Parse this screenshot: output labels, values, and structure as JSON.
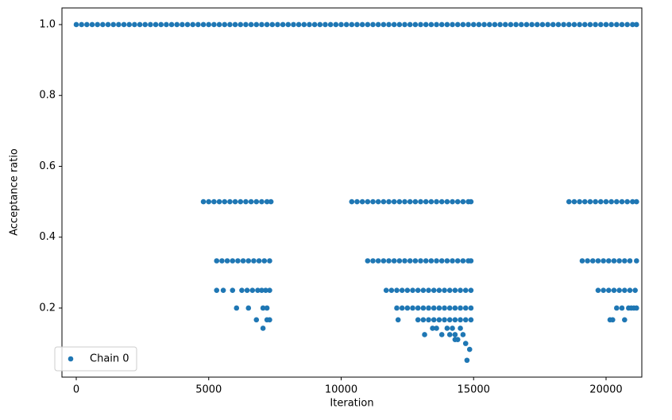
{
  "chart_data": {
    "type": "scatter",
    "xlabel": "Iteration",
    "ylabel": "Acceptance ratio",
    "xlim": [
      -540,
      21350
    ],
    "ylim": [
      0.005,
      1.047
    ],
    "xticks": [
      0,
      5000,
      10000,
      15000,
      20000
    ],
    "yticks": [
      0.2,
      0.4,
      0.6,
      0.8,
      {
        "value": 1,
        "label": "1.0"
      }
    ],
    "grid": false,
    "legend": "lower left",
    "series": [
      {
        "name": "Chain 0",
        "color": "#1f77b4",
        "x": [
          0,
          200,
          400,
          600,
          800,
          1000,
          1200,
          1400,
          1600,
          1800,
          2000,
          2200,
          2400,
          2600,
          2800,
          3000,
          3200,
          3400,
          3600,
          3800,
          4000,
          4200,
          4400,
          4600,
          4800,
          5000,
          5200,
          5400,
          5600,
          5800,
          6000,
          6200,
          6400,
          6600,
          6800,
          7000,
          7200,
          7400,
          7600,
          7800,
          8000,
          8200,
          8400,
          8600,
          8800,
          9000,
          9200,
          9400,
          9600,
          9800,
          10000,
          10200,
          10400,
          10600,
          10800,
          11000,
          11200,
          11400,
          11600,
          11800,
          12000,
          12200,
          12400,
          12600,
          12800,
          13000,
          13200,
          13400,
          13600,
          13800,
          14000,
          14200,
          14400,
          14600,
          14800,
          15000,
          15200,
          15400,
          15600,
          15800,
          16000,
          16200,
          16400,
          16600,
          16800,
          17000,
          17200,
          17400,
          17600,
          17800,
          18000,
          18200,
          18400,
          18600,
          18800,
          19000,
          19200,
          19400,
          19600,
          19800,
          20000,
          20200,
          20400,
          20600,
          20800,
          21000,
          21150,
          4800,
          5000,
          5200,
          5400,
          5600,
          5800,
          6000,
          6200,
          6400,
          6600,
          6800,
          7000,
          7200,
          7350,
          5300,
          5500,
          5700,
          5900,
          6100,
          6300,
          6500,
          6700,
          6900,
          7100,
          7300,
          5300,
          5550,
          5900,
          6250,
          6450,
          6650,
          6850,
          7000,
          7150,
          7300,
          6050,
          6500,
          7050,
          7200,
          6800,
          7200,
          7300,
          7050,
          10400,
          10600,
          10800,
          11000,
          11200,
          11400,
          11600,
          11800,
          12000,
          12200,
          12400,
          12600,
          12800,
          13000,
          13200,
          13400,
          13600,
          13800,
          14000,
          14200,
          14400,
          14600,
          14800,
          14900,
          11000,
          11200,
          11400,
          11600,
          11800,
          12000,
          12200,
          12400,
          12600,
          12800,
          13000,
          13200,
          13400,
          13600,
          13800,
          14000,
          14200,
          14400,
          14600,
          14800,
          14900,
          11700,
          11900,
          12100,
          12300,
          12500,
          12700,
          12900,
          13100,
          13300,
          13500,
          13700,
          13900,
          14100,
          14300,
          14500,
          14700,
          14900,
          12100,
          12300,
          12500,
          12700,
          12900,
          13100,
          13300,
          13500,
          13700,
          13900,
          14100,
          14300,
          14500,
          14700,
          14900,
          12150,
          12900,
          13100,
          13300,
          13500,
          13700,
          13900,
          14100,
          14300,
          14500,
          14700,
          14900,
          13450,
          13600,
          14000,
          14200,
          14500,
          13150,
          13800,
          14100,
          14300,
          14600,
          14300,
          14400,
          14700,
          14850,
          14750,
          18600,
          18800,
          19000,
          19200,
          19400,
          19600,
          19800,
          20000,
          20200,
          20400,
          20600,
          20800,
          21000,
          21150,
          19100,
          19300,
          19500,
          19700,
          19900,
          20100,
          20300,
          20500,
          20700,
          20900,
          21150,
          19700,
          19900,
          20100,
          20300,
          20500,
          20700,
          20900,
          21100,
          20400,
          20600,
          20850,
          20950,
          21050,
          21150,
          20150,
          20250,
          20700
        ],
        "values": [
          1,
          1,
          1,
          1,
          1,
          1,
          1,
          1,
          1,
          1,
          1,
          1,
          1,
          1,
          1,
          1,
          1,
          1,
          1,
          1,
          1,
          1,
          1,
          1,
          1,
          1,
          1,
          1,
          1,
          1,
          1,
          1,
          1,
          1,
          1,
          1,
          1,
          1,
          1,
          1,
          1,
          1,
          1,
          1,
          1,
          1,
          1,
          1,
          1,
          1,
          1,
          1,
          1,
          1,
          1,
          1,
          1,
          1,
          1,
          1,
          1,
          1,
          1,
          1,
          1,
          1,
          1,
          1,
          1,
          1,
          1,
          1,
          1,
          1,
          1,
          1,
          1,
          1,
          1,
          1,
          1,
          1,
          1,
          1,
          1,
          1,
          1,
          1,
          1,
          1,
          1,
          1,
          1,
          1,
          1,
          1,
          1,
          1,
          1,
          1,
          1,
          1,
          1,
          1,
          1,
          1,
          1,
          0.5,
          0.5,
          0.5,
          0.5,
          0.5,
          0.5,
          0.5,
          0.5,
          0.5,
          0.5,
          0.5,
          0.5,
          0.5,
          0.5,
          0.3333,
          0.3333,
          0.3333,
          0.3333,
          0.3333,
          0.3333,
          0.3333,
          0.3333,
          0.3333,
          0.3333,
          0.3333,
          0.25,
          0.25,
          0.25,
          0.25,
          0.25,
          0.25,
          0.25,
          0.25,
          0.25,
          0.25,
          0.2,
          0.2,
          0.2,
          0.2,
          0.1667,
          0.1667,
          0.1667,
          0.1429,
          0.5,
          0.5,
          0.5,
          0.5,
          0.5,
          0.5,
          0.5,
          0.5,
          0.5,
          0.5,
          0.5,
          0.5,
          0.5,
          0.5,
          0.5,
          0.5,
          0.5,
          0.5,
          0.5,
          0.5,
          0.5,
          0.5,
          0.5,
          0.5,
          0.3333,
          0.3333,
          0.3333,
          0.3333,
          0.3333,
          0.3333,
          0.3333,
          0.3333,
          0.3333,
          0.3333,
          0.3333,
          0.3333,
          0.3333,
          0.3333,
          0.3333,
          0.3333,
          0.3333,
          0.3333,
          0.3333,
          0.3333,
          0.3333,
          0.25,
          0.25,
          0.25,
          0.25,
          0.25,
          0.25,
          0.25,
          0.25,
          0.25,
          0.25,
          0.25,
          0.25,
          0.25,
          0.25,
          0.25,
          0.25,
          0.25,
          0.2,
          0.2,
          0.2,
          0.2,
          0.2,
          0.2,
          0.2,
          0.2,
          0.2,
          0.2,
          0.2,
          0.2,
          0.2,
          0.2,
          0.2,
          0.1667,
          0.1667,
          0.1667,
          0.1667,
          0.1667,
          0.1667,
          0.1667,
          0.1667,
          0.1667,
          0.1667,
          0.1667,
          0.1667,
          0.1429,
          0.1429,
          0.1429,
          0.1429,
          0.1429,
          0.125,
          0.125,
          0.125,
          0.125,
          0.125,
          0.1111,
          0.1111,
          0.1,
          0.0833,
          0.0526,
          0.5,
          0.5,
          0.5,
          0.5,
          0.5,
          0.5,
          0.5,
          0.5,
          0.5,
          0.5,
          0.5,
          0.5,
          0.5,
          0.5,
          0.3333,
          0.3333,
          0.3333,
          0.3333,
          0.3333,
          0.3333,
          0.3333,
          0.3333,
          0.3333,
          0.3333,
          0.3333,
          0.25,
          0.25,
          0.25,
          0.25,
          0.25,
          0.25,
          0.25,
          0.25,
          0.2,
          0.2,
          0.2,
          0.2,
          0.2,
          0.2,
          0.1667,
          0.1667,
          0.1667
        ]
      }
    ]
  }
}
